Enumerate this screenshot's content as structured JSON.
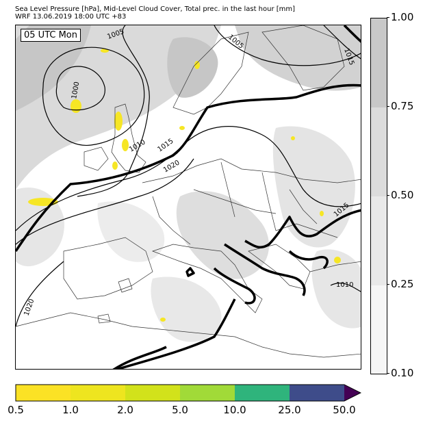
{
  "header": {
    "title_line1": "Sea Level Pressure [hPa], Mid-Level Cloud Cover, Total prec. in the last hour [mm]",
    "title_line2": "WRF 13.06.2019 18:00 UTC +83"
  },
  "map": {
    "time_label": "05 UTC Mon",
    "isobar_labels": [
      "1005",
      "1005",
      "1015",
      "1000",
      "1010",
      "1015",
      "1020",
      "1015",
      "1010",
      "1020"
    ],
    "colors": {
      "land": "#ffffff",
      "cloud_light": "#e6e6e6",
      "cloud_mid": "#d2d2d2",
      "cloud_dark": "#bdbdbd",
      "precip": "#f6e625",
      "isobar": "#000000",
      "coast": "#333333"
    }
  },
  "cloud_colorbar": {
    "ticks": [
      "1.00",
      "0.75",
      "0.50",
      "0.25",
      "0.10"
    ],
    "colors": [
      "#c8c8c8",
      "#dcdcdc",
      "#e9e9e9",
      "#f6f6f6"
    ]
  },
  "precip_colorbar": {
    "ticks": [
      "0.5",
      "1.0",
      "2.0",
      "5.0",
      "10.0",
      "25.0",
      "50.0"
    ],
    "colors": [
      "#fbe225",
      "#eee51f",
      "#d2e21b",
      "#a1da38",
      "#2fb47c",
      "#3e4c8a",
      "#440154"
    ]
  }
}
